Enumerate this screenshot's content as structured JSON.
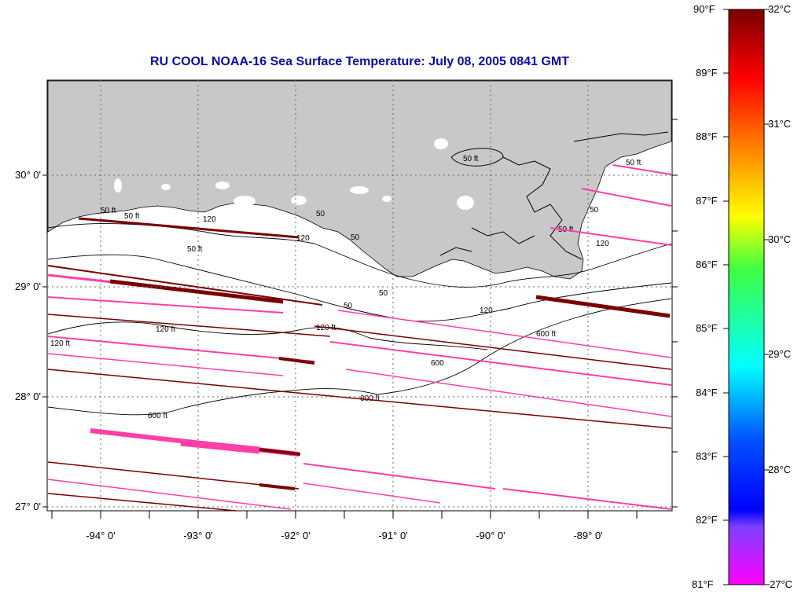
{
  "title": "RU COOL  NOAA-16  Sea Surface Temperature:  July 08, 2005 0841 GMT",
  "map": {
    "lon_ticks": [
      "-94° 0'",
      "-93° 0'",
      "-92° 0'",
      "-91° 0'",
      "-90° 0'",
      "-89° 0'"
    ],
    "lat_ticks": [
      "30° 0'",
      "29° 0'",
      "28° 0'",
      "27° 0'"
    ],
    "land_color": "#c8c8c8",
    "no_data_color": "#ffffff",
    "contour_labels": [
      {
        "text": "50 ft",
        "id": "c1"
      },
      {
        "text": "50 ft",
        "id": "c2"
      },
      {
        "text": "120",
        "id": "c3"
      },
      {
        "text": "120",
        "id": "c4"
      },
      {
        "text": "50 ft",
        "id": "c5"
      },
      {
        "text": "50",
        "id": "c6"
      },
      {
        "text": "50",
        "id": "c7"
      },
      {
        "text": "50 ft",
        "id": "c8"
      },
      {
        "text": "50",
        "id": "c9"
      },
      {
        "text": "120 ft",
        "id": "c10"
      },
      {
        "text": "120 ft",
        "id": "c11"
      },
      {
        "text": "120 ft",
        "id": "c12"
      },
      {
        "text": "50",
        "id": "c13"
      },
      {
        "text": "120",
        "id": "c14"
      },
      {
        "text": "600 ft",
        "id": "c15"
      },
      {
        "text": "600 ft",
        "id": "c16"
      },
      {
        "text": "600 ft",
        "id": "c17"
      },
      {
        "text": "600",
        "id": "c18"
      },
      {
        "text": "50 ft",
        "id": "c19"
      },
      {
        "text": "50",
        "id": "c20"
      },
      {
        "text": "120",
        "id": "c21"
      },
      {
        "text": "50 ft",
        "id": "c22"
      }
    ]
  },
  "colorbar": {
    "f_labels": [
      "90°F",
      "89°F",
      "88°F",
      "87°F",
      "86°F",
      "85°F",
      "84°F",
      "83°F",
      "82°F",
      "81°F"
    ],
    "c_labels": [
      "32°C",
      "31°C",
      "30°C",
      "29°C",
      "28°C",
      "27°C"
    ],
    "colors": [
      "#7a0000",
      "#ff0000",
      "#ff8c00",
      "#ffff00",
      "#40ff40",
      "#00ffff",
      "#0050ff",
      "#0000ff",
      "#8040ff",
      "#ff00ff"
    ]
  }
}
